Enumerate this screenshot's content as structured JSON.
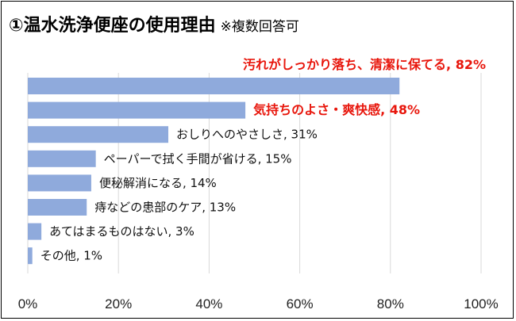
{
  "title": "①温水洗浄便座の使用理由",
  "subtitle": "※複数回答可",
  "colors": {
    "bar": "#8faadc",
    "highlight": "#e8160c",
    "text": "#111111",
    "grid": "#d9d9d9"
  },
  "chart_data": {
    "type": "bar",
    "orientation": "horizontal",
    "title": "",
    "xlabel": "",
    "ylabel": "",
    "xlim": [
      0,
      100
    ],
    "x_tick_labels": [
      "0%",
      "20%",
      "40%",
      "60%",
      "80%",
      "100%"
    ],
    "grid": true,
    "legend": "none",
    "bars": [
      {
        "label": "汚れがしっかり落ち、清潔に保てる, 82%",
        "value": 82,
        "highlight": true
      },
      {
        "label": "気持ちのよさ・爽快感, 48%",
        "value": 48,
        "highlight": true
      },
      {
        "label": "おしりへのやさしさ, 31%",
        "value": 31,
        "highlight": false
      },
      {
        "label": "ペーパーで拭く手間が省ける, 15%",
        "value": 15,
        "highlight": false
      },
      {
        "label": "便秘解消になる, 14%",
        "value": 14,
        "highlight": false
      },
      {
        "label": "痔などの患部のケア, 13%",
        "value": 13,
        "highlight": false
      },
      {
        "label": "あてはまるものはない, 3%",
        "value": 3,
        "highlight": false
      },
      {
        "label": "その他, 1%",
        "value": 1,
        "highlight": false
      }
    ]
  }
}
